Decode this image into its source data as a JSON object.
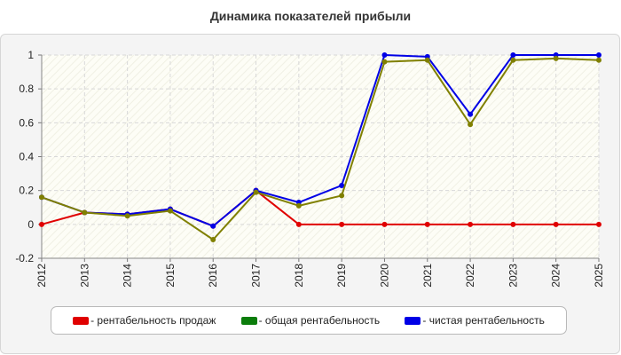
{
  "chart_data": {
    "type": "line",
    "title": "Динамика показателей прибыли",
    "xlabel": "",
    "ylabel": "",
    "x": [
      "2012",
      "2013",
      "2014",
      "2015",
      "2016",
      "2017",
      "2018",
      "2019",
      "2020",
      "2021",
      "2022",
      "2023",
      "2024",
      "2025"
    ],
    "ylim": [
      -0.2,
      1
    ],
    "yticks": [
      "-0.2",
      "0",
      "0.2",
      "0.4",
      "0.6",
      "0.8",
      "1"
    ],
    "grid": true,
    "legend_position": "bottom",
    "series": [
      {
        "name": "- рентабельность продаж",
        "color": "#e00000",
        "values": [
          0,
          0.07,
          0.06,
          0.09,
          -0.01,
          0.2,
          0,
          0,
          0,
          0,
          0,
          0,
          0,
          0
        ]
      },
      {
        "name": "- общая рентабельность",
        "color": "#0b7d0b",
        "values": [
          0.16,
          0.07,
          0.05,
          0.08,
          -0.09,
          0.19,
          0.11,
          0.17,
          0.96,
          0.97,
          0.59,
          0.97,
          0.98,
          0.97
        ]
      },
      {
        "name": "- чистая рентабельность",
        "color": "#0000e6",
        "values": [
          0.16,
          0.07,
          0.06,
          0.09,
          -0.01,
          0.2,
          0.13,
          0.23,
          1,
          0.99,
          0.65,
          1,
          1,
          1
        ]
      }
    ],
    "overlap_color": "#808000"
  }
}
